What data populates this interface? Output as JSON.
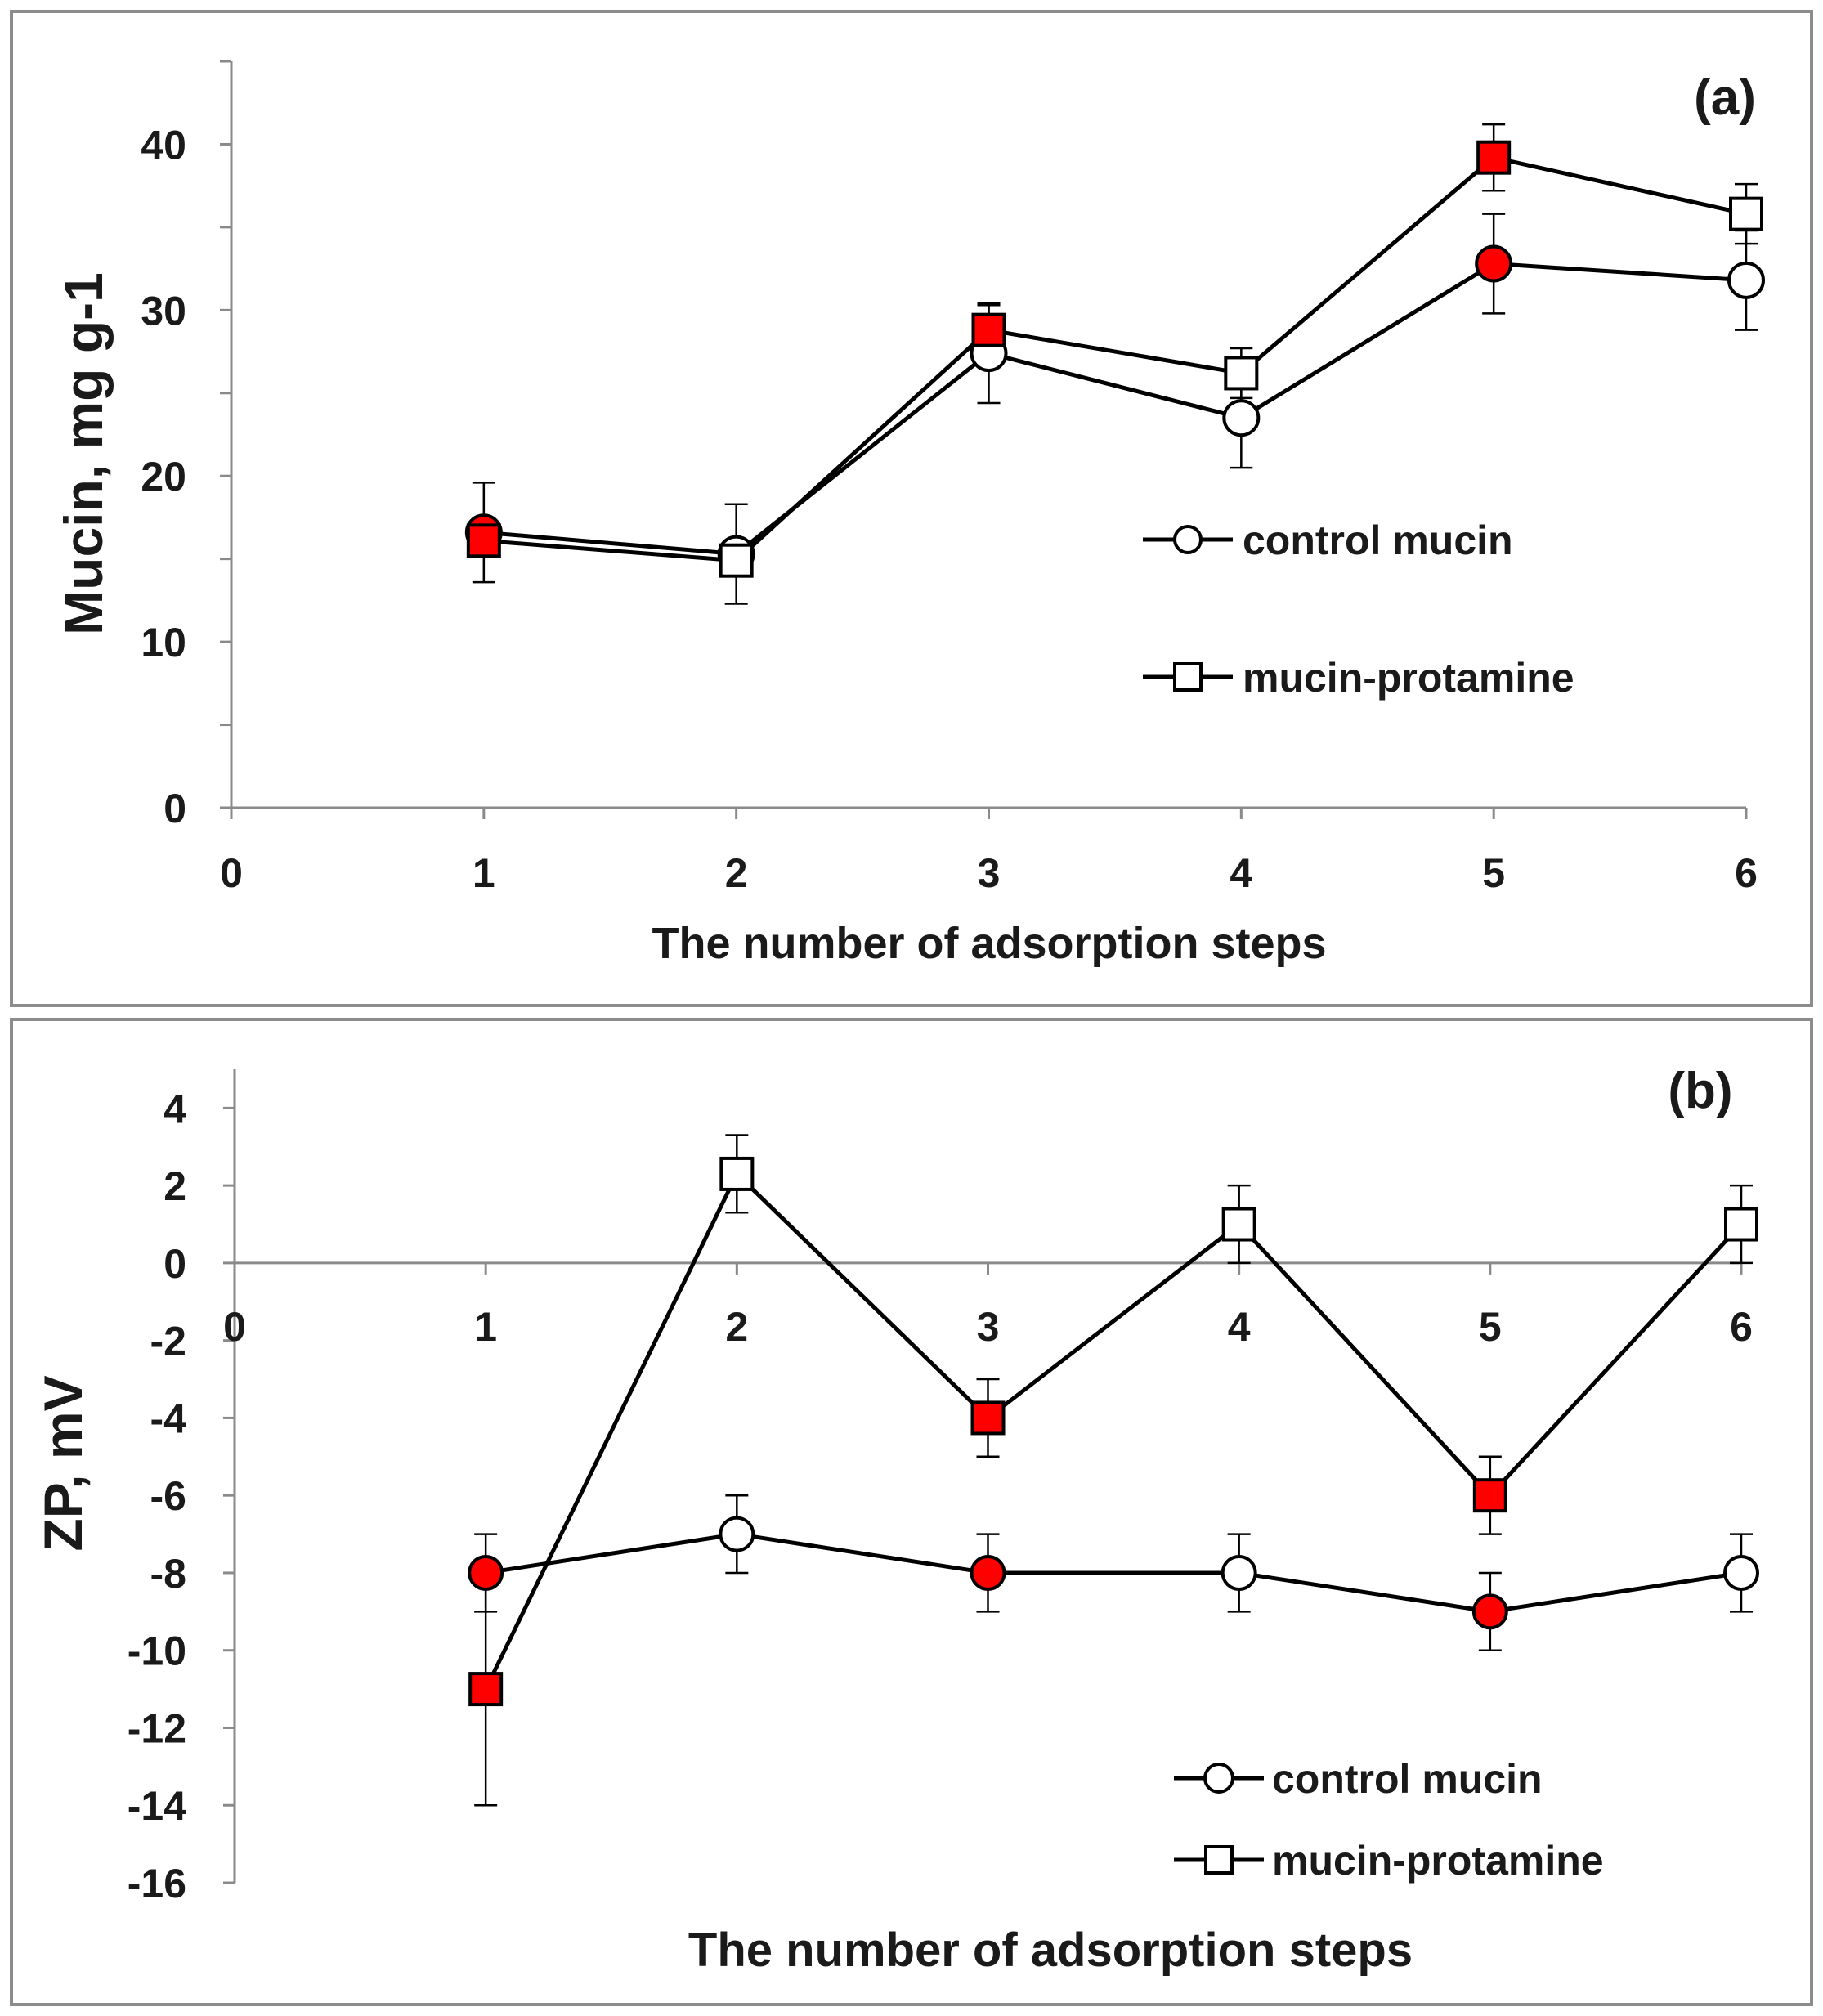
{
  "colors": {
    "filled_marker": "#ff0000",
    "open_marker": "#ffffff",
    "line": "#000000",
    "axis": "#8a8a8a"
  },
  "chart_data": [
    {
      "panel": "(a)",
      "type": "line",
      "title": "",
      "xlabel": "The number of adsorption steps",
      "ylabel": "Mucin, mg  g-1",
      "xlim": [
        0,
        6
      ],
      "ylim": [
        0,
        45
      ],
      "x_ticks": [
        0,
        1,
        2,
        3,
        4,
        5,
        6
      ],
      "y_ticks": [
        0,
        10,
        20,
        30,
        40
      ],
      "grid": false,
      "legend_position": "right-middle",
      "series": [
        {
          "name": "control mucin",
          "marker": "circle",
          "x": [
            1,
            2,
            3,
            4,
            5,
            6
          ],
          "y": [
            16.6,
            15.3,
            27.4,
            23.5,
            32.8,
            31.8
          ],
          "err": [
            3.0,
            3.0,
            3.0,
            3.0,
            3.0,
            3.0
          ],
          "filled": [
            true,
            false,
            false,
            false,
            true,
            false
          ]
        },
        {
          "name": "mucin-protamine",
          "marker": "square",
          "x": [
            1,
            2,
            3,
            4,
            5,
            6
          ],
          "y": [
            16.1,
            14.9,
            28.8,
            26.2,
            39.2,
            35.8
          ],
          "err": [
            0,
            0,
            1.5,
            1.5,
            2.0,
            1.8
          ],
          "filled": [
            true,
            false,
            true,
            false,
            true,
            false
          ]
        }
      ]
    },
    {
      "panel": "(b)",
      "type": "line",
      "title": "",
      "xlabel": "The number of adsorption steps",
      "ylabel": "ZP, mV",
      "xlim": [
        0,
        6
      ],
      "ylim": [
        -16,
        5
      ],
      "x_ticks": [
        0,
        1,
        2,
        3,
        4,
        5,
        6
      ],
      "y_ticks": [
        4,
        2,
        0,
        -2,
        -4,
        -6,
        -8,
        -10,
        -12,
        -14,
        -16
      ],
      "grid": false,
      "legend_position": "bottom-right",
      "series": [
        {
          "name": "control mucin",
          "marker": "circle",
          "x": [
            1,
            2,
            3,
            4,
            5,
            6
          ],
          "y": [
            -8,
            -7,
            -8,
            -8,
            -9,
            -8
          ],
          "err": [
            1,
            1,
            1,
            1,
            1,
            1
          ],
          "filled": [
            true,
            false,
            true,
            false,
            true,
            false
          ]
        },
        {
          "name": "mucin-protamine",
          "marker": "square",
          "x": [
            1,
            2,
            3,
            4,
            5,
            6
          ],
          "y": [
            -11,
            2.3,
            -4,
            1,
            -6,
            1
          ],
          "err": [
            3,
            1,
            1,
            1,
            1,
            1
          ],
          "filled": [
            true,
            false,
            true,
            false,
            true,
            false
          ]
        }
      ]
    }
  ]
}
